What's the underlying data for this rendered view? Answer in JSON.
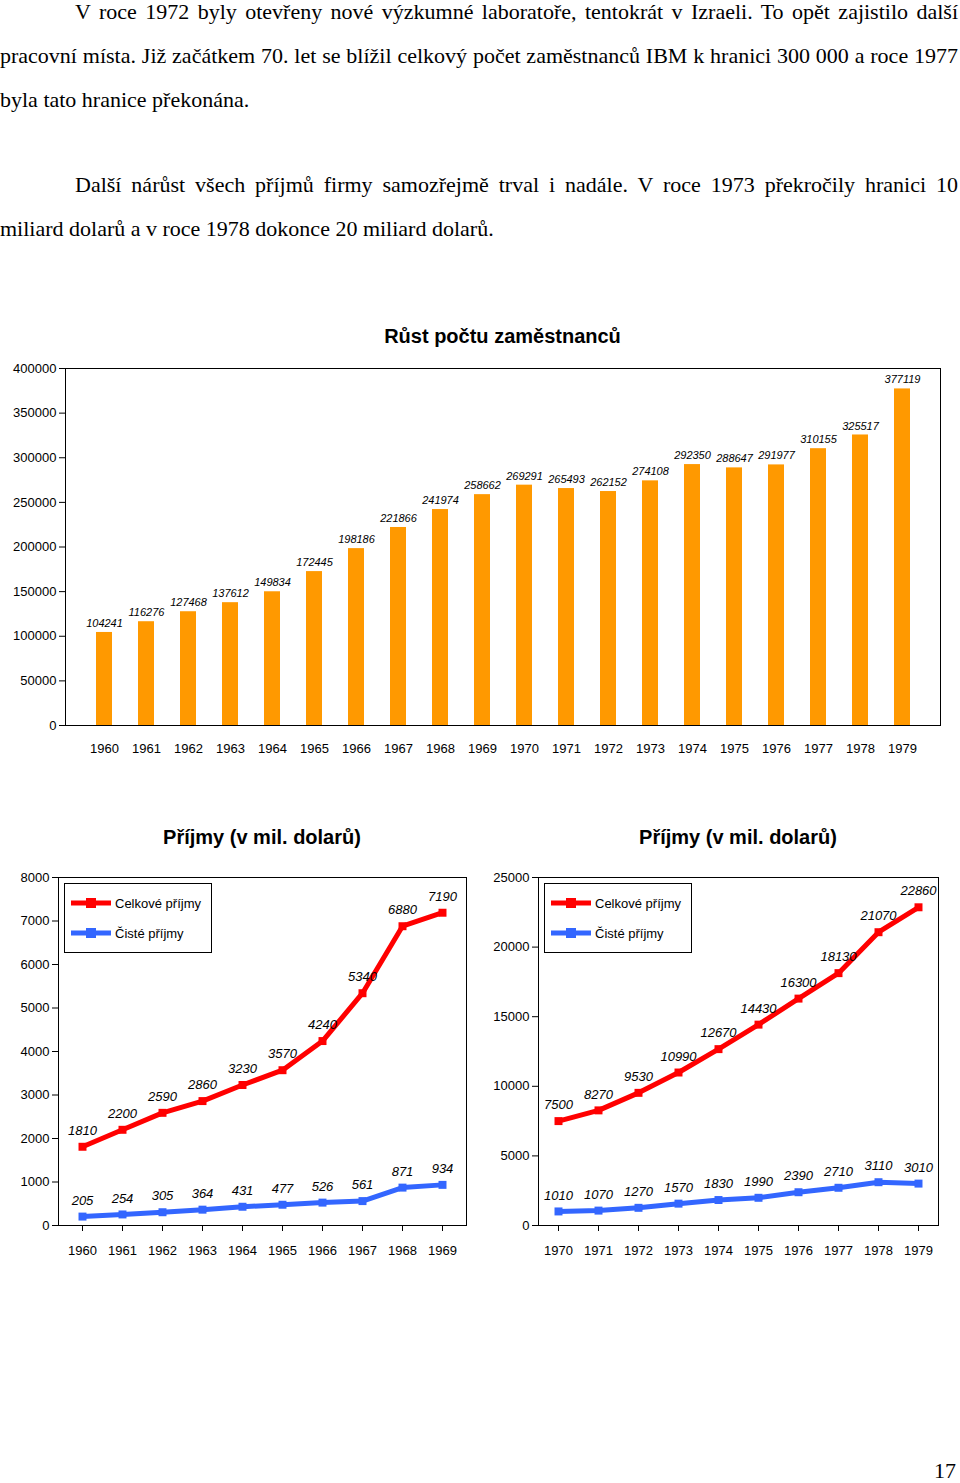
{
  "paragraphs": [
    "V roce 1972 byly otevřeny nové výzkumné laboratoře, tentokrát v Izraeli. To opět zajistilo další pracovní místa. Již začátkem 70. let se blížil celkový počet zaměstnanců IBM k hranici 300 000 a roce 1977 byla tato hranice překonána.",
    "Další nárůst všech příjmů firmy samozřejmě trval i nadále. V roce 1973 překročily hranici 10 miliard dolarů a v roce 1978 dokonce 20 miliard dolarů."
  ],
  "chart_data": [
    {
      "type": "bar",
      "title": "Růst počtu zaměstnanců",
      "categories": [
        "1960",
        "1961",
        "1962",
        "1963",
        "1964",
        "1965",
        "1966",
        "1967",
        "1968",
        "1969",
        "1970",
        "1971",
        "1972",
        "1973",
        "1974",
        "1975",
        "1976",
        "1977",
        "1978",
        "1979"
      ],
      "values": [
        104241,
        116276,
        127468,
        137612,
        149834,
        172445,
        198186,
        221866,
        241974,
        258662,
        269291,
        265493,
        262152,
        274108,
        292350,
        288647,
        291977,
        310155,
        325517,
        377119
      ],
      "color": "#ff9900",
      "ylim": [
        0,
        400000
      ],
      "yticks": [
        0,
        50000,
        100000,
        150000,
        200000,
        250000,
        300000,
        350000,
        400000
      ],
      "data_labels": true
    },
    {
      "type": "line",
      "title": "Příjmy (v mil. dolarů)",
      "categories": [
        "1960",
        "1961",
        "1962",
        "1963",
        "1964",
        "1965",
        "1966",
        "1967",
        "1968",
        "1969"
      ],
      "series": [
        {
          "name": "Celkové příjmy",
          "color": "#ff0000",
          "marker": "square",
          "values": [
            1810,
            2200,
            2590,
            2860,
            3230,
            3570,
            4240,
            5340,
            6880,
            7190
          ]
        },
        {
          "name": "Čisté příjmy",
          "color": "#3366ff",
          "marker": "square",
          "values": [
            205,
            254,
            305,
            364,
            431,
            477,
            526,
            561,
            871,
            934
          ]
        }
      ],
      "ylim": [
        0,
        8000
      ],
      "yticks": [
        0,
        1000,
        2000,
        3000,
        4000,
        5000,
        6000,
        7000,
        8000
      ],
      "legend": "top-left",
      "data_labels": true
    },
    {
      "type": "line",
      "title": "Příjmy (v mil. dolarů)",
      "categories": [
        "1970",
        "1971",
        "1972",
        "1973",
        "1974",
        "1975",
        "1976",
        "1977",
        "1978",
        "1979"
      ],
      "series": [
        {
          "name": "Celkové příjmy",
          "color": "#ff0000",
          "marker": "square",
          "values": [
            7500,
            8270,
            9530,
            10990,
            12670,
            14430,
            16300,
            18130,
            21070,
            22860
          ]
        },
        {
          "name": "Čisté příjmy",
          "color": "#3366ff",
          "marker": "square",
          "values": [
            1010,
            1070,
            1270,
            1570,
            1830,
            1990,
            2390,
            2710,
            3110,
            3010
          ]
        }
      ],
      "ylim": [
        0,
        25000
      ],
      "yticks": [
        0,
        5000,
        10000,
        15000,
        20000,
        25000
      ],
      "legend": "top-left",
      "data_labels": true
    }
  ],
  "page_number": "17"
}
